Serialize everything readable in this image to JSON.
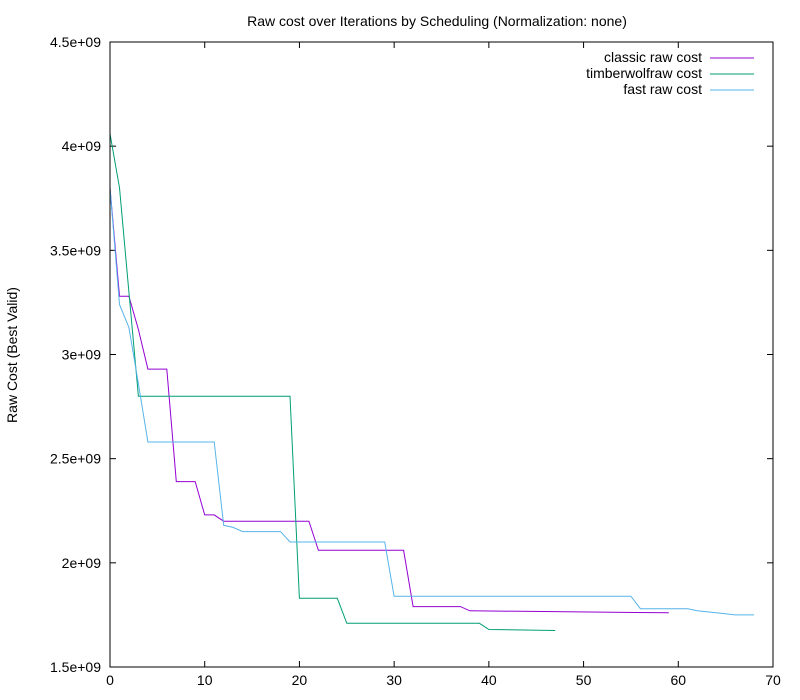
{
  "chart_data": {
    "type": "line",
    "title": "Raw cost over Iterations by Scheduling (Normalization: none)",
    "xlabel": "",
    "ylabel": "Raw Cost (Best Valid)",
    "xlim": [
      0,
      70
    ],
    "ylim": [
      1500000000,
      4500000000
    ],
    "xticks": [
      0,
      10,
      20,
      30,
      40,
      50,
      60,
      70
    ],
    "xtick_labels": [
      "0",
      "10",
      "20",
      "30",
      "40",
      "50",
      "60",
      "70"
    ],
    "yticks": [
      1500000000,
      2000000000,
      2500000000,
      3000000000,
      3500000000,
      4000000000,
      4500000000
    ],
    "ytick_labels": [
      "1.5e+09",
      "2e+09",
      "2.5e+09",
      "3e+09",
      "3.5e+09",
      "4e+09",
      "4.5e+09"
    ],
    "grid": false,
    "legend_position": "top-right",
    "series": [
      {
        "name": "classic raw cost",
        "color": "#9400d3",
        "x": [
          0,
          1,
          2,
          3,
          4,
          5,
          6,
          7,
          8,
          9,
          10,
          11,
          12,
          20,
          21,
          22,
          31,
          32,
          37,
          38,
          59
        ],
        "y": [
          3800000000,
          3280000000,
          3280000000,
          3120000000,
          2930000000,
          2930000000,
          2930000000,
          2390000000,
          2390000000,
          2390000000,
          2230000000,
          2230000000,
          2200000000,
          2200000000,
          2200000000,
          2060000000,
          2060000000,
          1790000000,
          1790000000,
          1770000000,
          1760000000
        ]
      },
      {
        "name": "timberwolfraw cost",
        "color": "#009e73",
        "x": [
          0,
          1,
          2,
          3,
          19,
          20,
          24,
          25,
          39,
          40,
          47
        ],
        "y": [
          4060000000,
          3800000000,
          3300000000,
          2800000000,
          2800000000,
          1830000000,
          1830000000,
          1710000000,
          1710000000,
          1680000000,
          1675000000
        ]
      },
      {
        "name": "fast raw cost",
        "color": "#56b4e9",
        "x": [
          0,
          1,
          2,
          3,
          4,
          11,
          12,
          13,
          14,
          18,
          19,
          29,
          30,
          55,
          56,
          61,
          62,
          64,
          66,
          68
        ],
        "y": [
          3800000000,
          3240000000,
          3130000000,
          2860000000,
          2580000000,
          2580000000,
          2180000000,
          2170000000,
          2150000000,
          2150000000,
          2100000000,
          2100000000,
          1840000000,
          1840000000,
          1780000000,
          1780000000,
          1770000000,
          1760000000,
          1750000000,
          1750000000
        ]
      }
    ]
  }
}
